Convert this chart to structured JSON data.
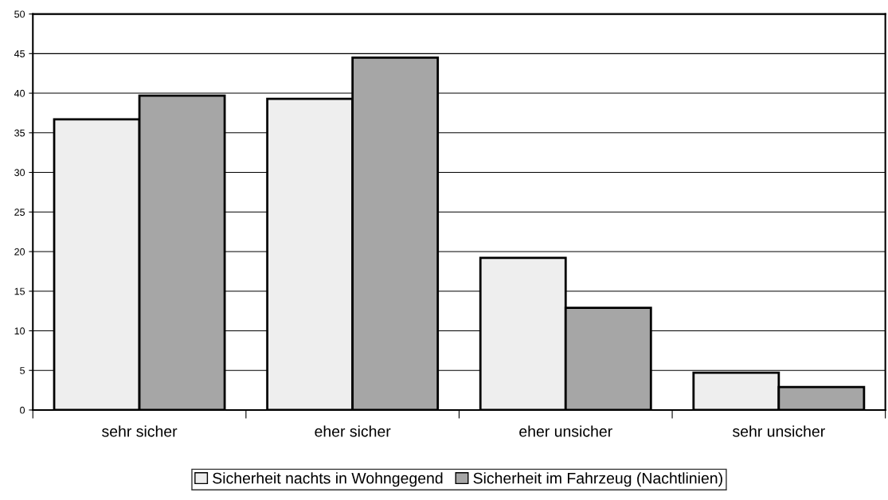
{
  "chart_data": {
    "type": "bar",
    "categories": [
      "sehr sicher",
      "eher sicher",
      "eher unsicher",
      "sehr unsicher"
    ],
    "series": [
      {
        "name": "Sicherheit nachts in Wohngegend",
        "color": "#eeeeee",
        "values": [
          36.7,
          39.3,
          19.2,
          4.7
        ]
      },
      {
        "name": "Sicherheit im Fahrzeug (Nachtlinien)",
        "color": "#a6a6a6",
        "values": [
          39.7,
          44.5,
          12.9,
          2.9
        ]
      }
    ],
    "ylim": [
      0,
      50
    ],
    "yticks": [
      0,
      5,
      10,
      15,
      20,
      25,
      30,
      35,
      40,
      45,
      50
    ],
    "grid": "y",
    "legend": "bottom"
  }
}
